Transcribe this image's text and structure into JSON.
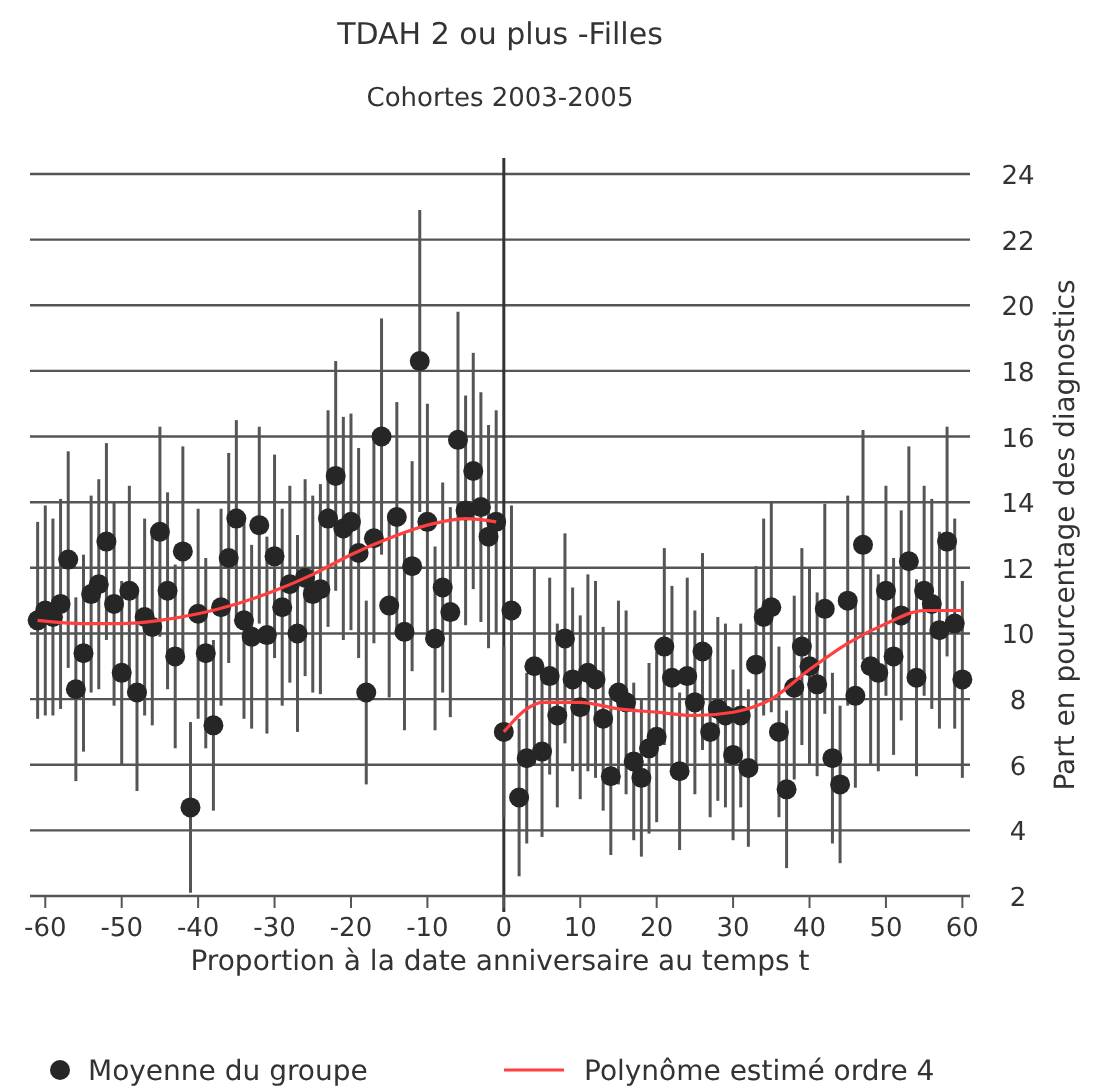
{
  "chart_data": {
    "type": "scatter",
    "title": "TDAH 2 ou plus -Filles",
    "subtitle": "Cohortes 2003-2005",
    "xlabel": "Proportion à la date anniversaire au temps t",
    "ylabel": "Part en pourcentage des diagnostics",
    "xlim": [
      -62,
      61
    ],
    "xticks": [
      -60,
      -50,
      -40,
      -30,
      -20,
      -10,
      0,
      10,
      20,
      30,
      40,
      50,
      60
    ],
    "ylim": [
      2,
      24
    ],
    "yticks": [
      2,
      4,
      6,
      8,
      10,
      12,
      14,
      16,
      18,
      20,
      22,
      24
    ],
    "grid": "y",
    "legend": "bottom",
    "marker": "circle",
    "ref_lines": [
      {
        "axis": "x",
        "value": 0,
        "color": "#333333"
      }
    ],
    "series": [
      {
        "name": "Moyenne du groupe",
        "color": "#262626",
        "x": [
          -61,
          -60,
          -59,
          -58,
          -57,
          -56,
          -55,
          -54,
          -53,
          -52,
          -51,
          -50,
          -49,
          -48,
          -47,
          -46,
          -45,
          -44,
          -43,
          -42,
          -41,
          -40,
          -39,
          -38,
          -37,
          -36,
          -35,
          -34,
          -33,
          -32,
          -31,
          -30,
          -29,
          -28,
          -27,
          -26,
          -25,
          -24,
          -23,
          -22,
          -21,
          -20,
          -19,
          -18,
          -17,
          -16,
          -15,
          -14,
          -13,
          -12,
          -11,
          -10,
          -9,
          -8,
          -7,
          -6,
          -5,
          -4,
          -3,
          -2,
          -1,
          0,
          1,
          2,
          3,
          4,
          5,
          6,
          7,
          8,
          9,
          10,
          11,
          12,
          13,
          14,
          15,
          16,
          17,
          18,
          19,
          20,
          21,
          22,
          23,
          24,
          25,
          26,
          27,
          28,
          29,
          30,
          31,
          32,
          33,
          34,
          35,
          36,
          37,
          38,
          39,
          40,
          41,
          42,
          43,
          44,
          45,
          46,
          47,
          48,
          49,
          50,
          51,
          52,
          53,
          54,
          55,
          56,
          57,
          58,
          59,
          60
        ],
        "values": [
          10.4,
          10.7,
          10.5,
          10.9,
          12.25,
          8.3,
          9.4,
          11.2,
          11.5,
          12.8,
          10.9,
          8.8,
          11.3,
          8.2,
          10.5,
          10.2,
          13.1,
          11.3,
          9.3,
          12.5,
          4.7,
          10.6,
          9.4,
          7.2,
          10.8,
          12.3,
          13.5,
          10.4,
          9.9,
          13.3,
          9.95,
          12.35,
          10.8,
          11.5,
          10.0,
          11.7,
          11.2,
          11.35,
          13.5,
          14.8,
          13.2,
          13.4,
          12.45,
          8.2,
          12.9,
          16.0,
          10.85,
          13.55,
          10.05,
          12.05,
          18.3,
          13.4,
          9.85,
          11.4,
          10.65,
          15.9,
          13.75,
          14.95,
          13.85,
          12.95,
          13.4,
          7.0,
          10.7,
          5.0,
          6.2,
          9.0,
          6.4,
          8.7,
          7.5,
          9.85,
          8.6,
          7.75,
          8.8,
          8.6,
          7.4,
          5.65,
          8.2,
          7.9,
          6.1,
          5.6,
          6.5,
          6.85,
          9.6,
          8.65,
          5.8,
          8.7,
          7.9,
          9.45,
          7.0,
          7.7,
          7.5,
          6.3,
          7.5,
          5.9,
          9.05,
          10.5,
          10.8,
          7.0,
          5.25,
          8.35,
          9.6,
          9.0,
          8.45,
          10.75,
          6.2,
          5.4,
          11.0,
          8.1,
          12.7,
          9.0,
          8.8,
          11.3,
          9.3,
          10.55,
          12.2,
          8.65,
          11.3,
          10.9,
          10.1,
          12.8,
          10.3,
          8.6
        ],
        "errors": [
          3,
          3.2,
          3,
          3.2,
          3.3,
          2.8,
          3,
          3,
          3.2,
          3,
          3.1,
          2.8,
          3.2,
          3,
          3,
          3,
          3.2,
          3,
          2.8,
          3.2,
          2.6,
          3.2,
          2.9,
          2.6,
          3,
          3.2,
          3,
          3,
          2.8,
          3,
          3,
          3.1,
          3,
          3,
          3,
          3,
          3,
          3.2,
          3.3,
          3.5,
          3.4,
          3.3,
          3.2,
          2.8,
          3.2,
          3.6,
          2.8,
          3.5,
          3,
          3.2,
          4.6,
          3.6,
          2.8,
          3.2,
          3.2,
          3.9,
          3.5,
          3.6,
          3.5,
          3.4,
          3.4,
          2.6,
          3.2,
          2.4,
          2.6,
          3,
          2.6,
          3,
          2.8,
          3.2,
          2.8,
          2.8,
          3,
          3,
          2.8,
          2.4,
          2.8,
          2.8,
          2.4,
          2.4,
          2.6,
          2.6,
          3,
          2.8,
          2.4,
          3,
          2.8,
          3,
          2.6,
          2.8,
          2.8,
          2.6,
          2.8,
          2.4,
          3,
          3,
          3.2,
          2.6,
          2.4,
          2.8,
          3,
          3,
          2.8,
          3.2,
          2.6,
          2.4,
          3.2,
          2.8,
          3.5,
          3,
          3,
          3.2,
          3,
          3.2,
          3.5,
          3,
          3.2,
          3.2,
          3,
          3.5,
          3.2,
          3
        ]
      },
      {
        "name": "Polynôme estimé ordre 4",
        "type": "line",
        "color": "#ff4040",
        "marker": "none",
        "x": [
          -61,
          -55,
          -50,
          -45,
          -40,
          -35,
          -30,
          -25,
          -20,
          -15,
          -10,
          -5,
          -1,
          -0.5,
          0,
          3,
          5,
          10,
          15,
          20,
          25,
          30,
          35,
          40,
          45,
          50,
          55,
          60
        ],
        "values": [
          10.4,
          10.3,
          10.3,
          10.4,
          10.6,
          10.9,
          11.3,
          11.8,
          12.4,
          12.9,
          13.3,
          13.5,
          13.4,
          null,
          7.0,
          7.7,
          7.9,
          7.9,
          7.7,
          7.6,
          7.5,
          7.6,
          8.0,
          8.9,
          9.7,
          10.3,
          10.7,
          10.7
        ]
      }
    ]
  }
}
